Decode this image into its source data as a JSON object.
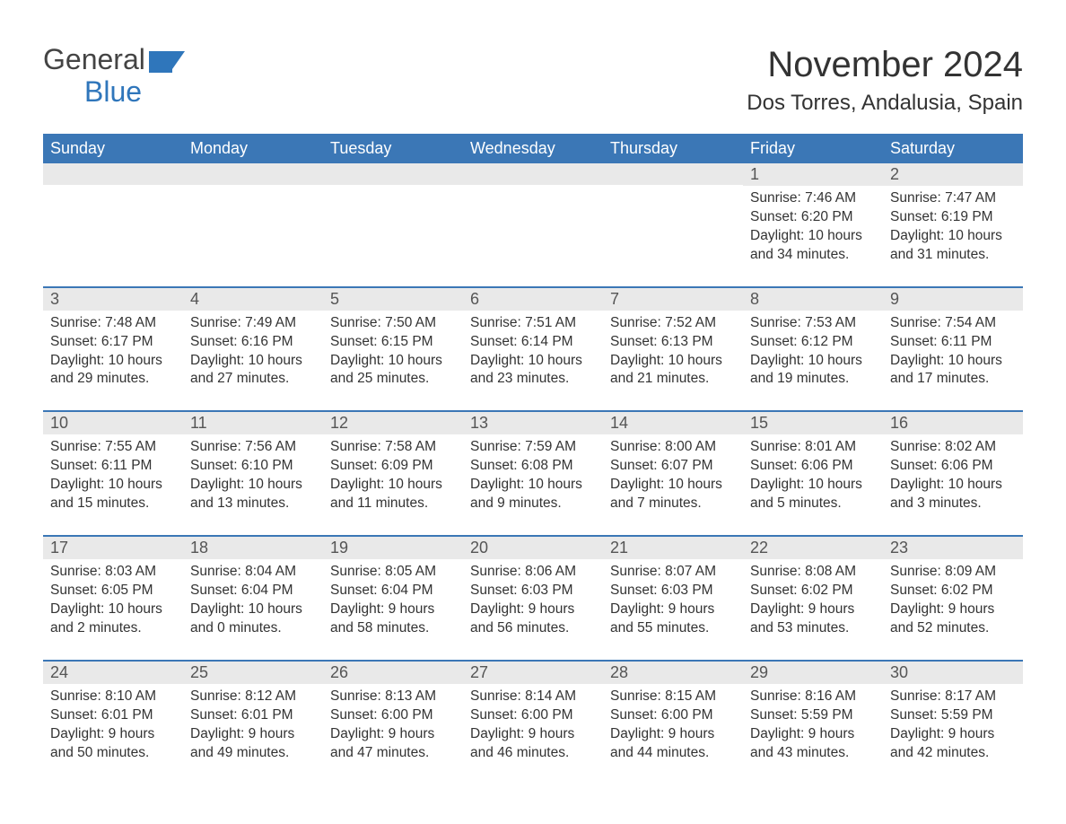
{
  "logo": {
    "text_general": "General",
    "text_blue": "Blue",
    "icon_color": "#2f76bb"
  },
  "title": "November 2024",
  "location": "Dos Torres, Andalusia, Spain",
  "colors": {
    "header_bg": "#3b77b6",
    "header_text": "#ffffff",
    "row_border": "#3b77b6",
    "daynum_bg": "#e9e9e9",
    "body_text": "#333333",
    "logo_gray": "#444444",
    "logo_blue": "#2f76bb",
    "page_bg": "#ffffff"
  },
  "typography": {
    "title_fontsize": 40,
    "location_fontsize": 24,
    "weekday_fontsize": 18,
    "daynum_fontsize": 18,
    "body_fontsize": 15.5,
    "logo_fontsize": 32
  },
  "calendar": {
    "type": "table",
    "columns": [
      "Sunday",
      "Monday",
      "Tuesday",
      "Wednesday",
      "Thursday",
      "Friday",
      "Saturday"
    ],
    "weeks": [
      [
        {
          "day": "",
          "sunrise": "",
          "sunset": "",
          "daylight": ""
        },
        {
          "day": "",
          "sunrise": "",
          "sunset": "",
          "daylight": ""
        },
        {
          "day": "",
          "sunrise": "",
          "sunset": "",
          "daylight": ""
        },
        {
          "day": "",
          "sunrise": "",
          "sunset": "",
          "daylight": ""
        },
        {
          "day": "",
          "sunrise": "",
          "sunset": "",
          "daylight": ""
        },
        {
          "day": "1",
          "sunrise": "Sunrise: 7:46 AM",
          "sunset": "Sunset: 6:20 PM",
          "daylight": "Daylight: 10 hours and 34 minutes."
        },
        {
          "day": "2",
          "sunrise": "Sunrise: 7:47 AM",
          "sunset": "Sunset: 6:19 PM",
          "daylight": "Daylight: 10 hours and 31 minutes."
        }
      ],
      [
        {
          "day": "3",
          "sunrise": "Sunrise: 7:48 AM",
          "sunset": "Sunset: 6:17 PM",
          "daylight": "Daylight: 10 hours and 29 minutes."
        },
        {
          "day": "4",
          "sunrise": "Sunrise: 7:49 AM",
          "sunset": "Sunset: 6:16 PM",
          "daylight": "Daylight: 10 hours and 27 minutes."
        },
        {
          "day": "5",
          "sunrise": "Sunrise: 7:50 AM",
          "sunset": "Sunset: 6:15 PM",
          "daylight": "Daylight: 10 hours and 25 minutes."
        },
        {
          "day": "6",
          "sunrise": "Sunrise: 7:51 AM",
          "sunset": "Sunset: 6:14 PM",
          "daylight": "Daylight: 10 hours and 23 minutes."
        },
        {
          "day": "7",
          "sunrise": "Sunrise: 7:52 AM",
          "sunset": "Sunset: 6:13 PM",
          "daylight": "Daylight: 10 hours and 21 minutes."
        },
        {
          "day": "8",
          "sunrise": "Sunrise: 7:53 AM",
          "sunset": "Sunset: 6:12 PM",
          "daylight": "Daylight: 10 hours and 19 minutes."
        },
        {
          "day": "9",
          "sunrise": "Sunrise: 7:54 AM",
          "sunset": "Sunset: 6:11 PM",
          "daylight": "Daylight: 10 hours and 17 minutes."
        }
      ],
      [
        {
          "day": "10",
          "sunrise": "Sunrise: 7:55 AM",
          "sunset": "Sunset: 6:11 PM",
          "daylight": "Daylight: 10 hours and 15 minutes."
        },
        {
          "day": "11",
          "sunrise": "Sunrise: 7:56 AM",
          "sunset": "Sunset: 6:10 PM",
          "daylight": "Daylight: 10 hours and 13 minutes."
        },
        {
          "day": "12",
          "sunrise": "Sunrise: 7:58 AM",
          "sunset": "Sunset: 6:09 PM",
          "daylight": "Daylight: 10 hours and 11 minutes."
        },
        {
          "day": "13",
          "sunrise": "Sunrise: 7:59 AM",
          "sunset": "Sunset: 6:08 PM",
          "daylight": "Daylight: 10 hours and 9 minutes."
        },
        {
          "day": "14",
          "sunrise": "Sunrise: 8:00 AM",
          "sunset": "Sunset: 6:07 PM",
          "daylight": "Daylight: 10 hours and 7 minutes."
        },
        {
          "day": "15",
          "sunrise": "Sunrise: 8:01 AM",
          "sunset": "Sunset: 6:06 PM",
          "daylight": "Daylight: 10 hours and 5 minutes."
        },
        {
          "day": "16",
          "sunrise": "Sunrise: 8:02 AM",
          "sunset": "Sunset: 6:06 PM",
          "daylight": "Daylight: 10 hours and 3 minutes."
        }
      ],
      [
        {
          "day": "17",
          "sunrise": "Sunrise: 8:03 AM",
          "sunset": "Sunset: 6:05 PM",
          "daylight": "Daylight: 10 hours and 2 minutes."
        },
        {
          "day": "18",
          "sunrise": "Sunrise: 8:04 AM",
          "sunset": "Sunset: 6:04 PM",
          "daylight": "Daylight: 10 hours and 0 minutes."
        },
        {
          "day": "19",
          "sunrise": "Sunrise: 8:05 AM",
          "sunset": "Sunset: 6:04 PM",
          "daylight": "Daylight: 9 hours and 58 minutes."
        },
        {
          "day": "20",
          "sunrise": "Sunrise: 8:06 AM",
          "sunset": "Sunset: 6:03 PM",
          "daylight": "Daylight: 9 hours and 56 minutes."
        },
        {
          "day": "21",
          "sunrise": "Sunrise: 8:07 AM",
          "sunset": "Sunset: 6:03 PM",
          "daylight": "Daylight: 9 hours and 55 minutes."
        },
        {
          "day": "22",
          "sunrise": "Sunrise: 8:08 AM",
          "sunset": "Sunset: 6:02 PM",
          "daylight": "Daylight: 9 hours and 53 minutes."
        },
        {
          "day": "23",
          "sunrise": "Sunrise: 8:09 AM",
          "sunset": "Sunset: 6:02 PM",
          "daylight": "Daylight: 9 hours and 52 minutes."
        }
      ],
      [
        {
          "day": "24",
          "sunrise": "Sunrise: 8:10 AM",
          "sunset": "Sunset: 6:01 PM",
          "daylight": "Daylight: 9 hours and 50 minutes."
        },
        {
          "day": "25",
          "sunrise": "Sunrise: 8:12 AM",
          "sunset": "Sunset: 6:01 PM",
          "daylight": "Daylight: 9 hours and 49 minutes."
        },
        {
          "day": "26",
          "sunrise": "Sunrise: 8:13 AM",
          "sunset": "Sunset: 6:00 PM",
          "daylight": "Daylight: 9 hours and 47 minutes."
        },
        {
          "day": "27",
          "sunrise": "Sunrise: 8:14 AM",
          "sunset": "Sunset: 6:00 PM",
          "daylight": "Daylight: 9 hours and 46 minutes."
        },
        {
          "day": "28",
          "sunrise": "Sunrise: 8:15 AM",
          "sunset": "Sunset: 6:00 PM",
          "daylight": "Daylight: 9 hours and 44 minutes."
        },
        {
          "day": "29",
          "sunrise": "Sunrise: 8:16 AM",
          "sunset": "Sunset: 5:59 PM",
          "daylight": "Daylight: 9 hours and 43 minutes."
        },
        {
          "day": "30",
          "sunrise": "Sunrise: 8:17 AM",
          "sunset": "Sunset: 5:59 PM",
          "daylight": "Daylight: 9 hours and 42 minutes."
        }
      ]
    ]
  }
}
